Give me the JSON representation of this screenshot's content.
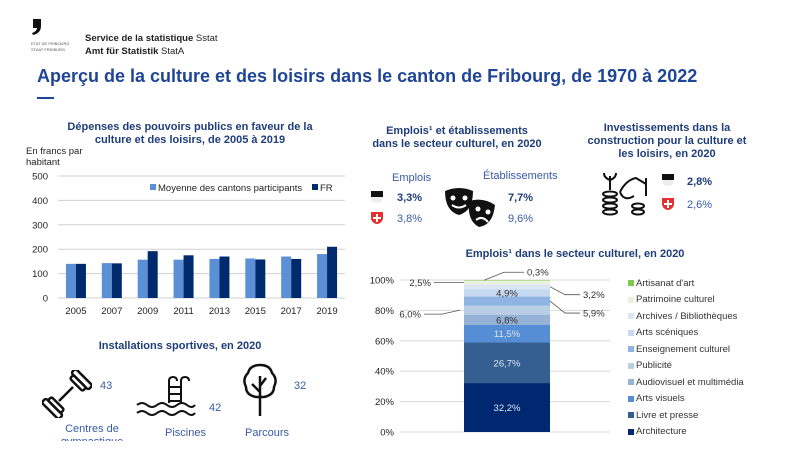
{
  "header": {
    "logo_text": [
      "ETAT DE FRIBOURG",
      "STAAT FREIBURG"
    ],
    "service_bold": "Service de la statistique",
    "service_abbr": "Sstat",
    "amt_bold": "Amt für Statistik",
    "amt_abbr": "StatA",
    "title": "Aperçu de la culture et des loisirs dans le canton de Fribourg, de 1970 à 2022"
  },
  "emplois": {
    "title": "Emplois¹ et établissements dans le secteur culturel, en 2020",
    "emplois_label": "Emplois",
    "etab_label": "Établissements",
    "fr_emplois": "3,3%",
    "ch_emplois": "3,8%",
    "fr_etab": "7,7%",
    "ch_etab": "9,6%",
    "icon": "theater-masks-icon"
  },
  "invest": {
    "title": "Investissements dans la construction pour la culture et les loisirs, en 2020",
    "fr": "2,8%",
    "ch": "2,6%",
    "icon": "money-hand-icon"
  },
  "sport": {
    "title": "Installations sportives, en 2020",
    "items": [
      {
        "label": "Centres de gymnastique",
        "value": "43",
        "icon": "dumbbell-icon"
      },
      {
        "label": "Piscines",
        "value": "42",
        "icon": "pool-ladder-icon"
      },
      {
        "label": "Parcours",
        "value": "32",
        "icon": "tree-icon"
      }
    ]
  },
  "chart_data": [
    {
      "type": "bar",
      "title": "Dépenses des pouvoirs publics en faveur de la culture et des loisirs, de 2005 à 2019",
      "ylabel": "En francs par habitant",
      "ylim": [
        0,
        500
      ],
      "yticks": [
        "0",
        "100",
        "200",
        "300",
        "400",
        "500"
      ],
      "grid": true,
      "legend": "top-right",
      "categories": [
        "2005",
        "2007",
        "2009",
        "2011",
        "2013",
        "2015",
        "2017",
        "2019"
      ],
      "series": [
        {
          "name": "Moyenne des cantons participants",
          "color": "#5b8fd6",
          "values": [
            140,
            143,
            157,
            157,
            160,
            162,
            170,
            180
          ]
        },
        {
          "name": "FR",
          "color": "#002a6e",
          "values": [
            140,
            142,
            192,
            175,
            170,
            158,
            160,
            210
          ]
        }
      ]
    },
    {
      "type": "bar",
      "stacked": true,
      "title": "Emplois¹ dans le secteur culturel, en 2020",
      "ylim": [
        0,
        100
      ],
      "yticks": [
        "0%",
        "20%",
        "40%",
        "60%",
        "80%",
        "100%"
      ],
      "grid": true,
      "legend": "right",
      "segments": [
        {
          "name": "Architecture",
          "value": 32.2,
          "label": "32,2%",
          "color": "#002870"
        },
        {
          "name": "Livre et presse",
          "value": 26.7,
          "label": "26,7%",
          "color": "#355f91"
        },
        {
          "name": "Arts visuels",
          "value": 11.5,
          "label": "11,5%",
          "color": "#558ed5"
        },
        {
          "name": "Audiovisuel et multimédia",
          "value": 6.8,
          "label": "6,8%",
          "color": "#95b3d7"
        },
        {
          "name": "Publicité",
          "value": 6.0,
          "label": "6,0%",
          "color": "#b9cde5"
        },
        {
          "name": "Enseignement culturel",
          "value": 5.9,
          "label": "5,9%",
          "color": "#8db4e2"
        },
        {
          "name": "Arts scéniques",
          "value": 4.9,
          "label": "4,9%",
          "color": "#c6d9f1"
        },
        {
          "name": "Archives / Bibliothèques",
          "value": 3.2,
          "label": "3,2%",
          "color": "#dce6f2"
        },
        {
          "name": "Patrimoine culturel",
          "value": 2.5,
          "label": "2,5%",
          "color": "#ebf1de"
        },
        {
          "name": "Artisanat d'art",
          "value": 0.3,
          "label": "0,3%",
          "color": "#7ec850"
        }
      ]
    }
  ]
}
